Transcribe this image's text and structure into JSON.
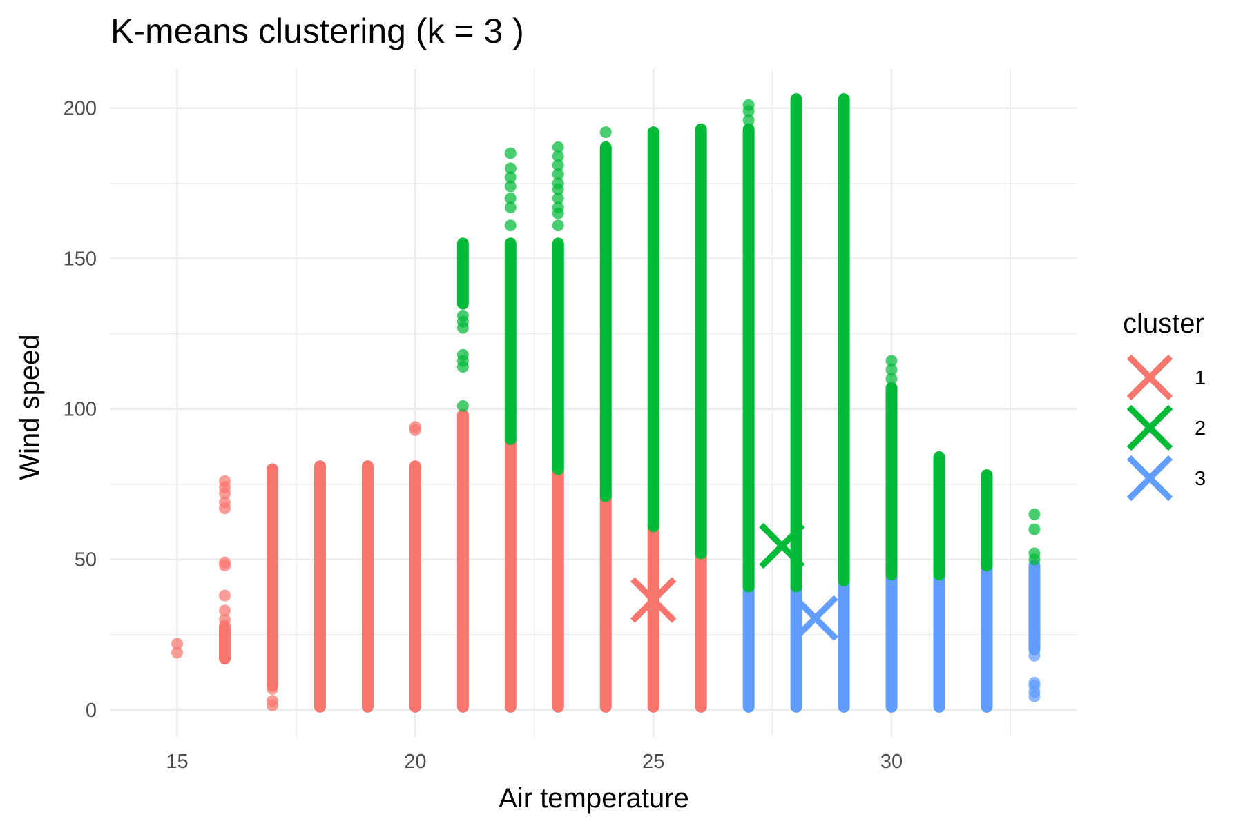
{
  "chart_data": {
    "type": "scatter",
    "title": "K-means clustering (k = 3 )",
    "xlabel": "Air temperature",
    "ylabel": "Wind speed",
    "xlim": [
      13.6,
      33.9
    ],
    "ylim": [
      -9,
      213
    ],
    "x_ticks": [
      15,
      20,
      25,
      30
    ],
    "x_tick_labels": [
      "15",
      "20",
      "25",
      "30"
    ],
    "y_ticks": [
      0,
      50,
      100,
      150,
      200
    ],
    "y_tick_labels": [
      "0",
      "50",
      "100",
      "150",
      "200"
    ],
    "grid": true,
    "legend": {
      "title": "cluster",
      "position": "right",
      "entries": [
        "1",
        "2",
        "3"
      ]
    },
    "colors": {
      "1": "#F8766D",
      "2": "#00BA38",
      "3": "#619CFF"
    },
    "columns": [
      {
        "x": 15,
        "segments": [],
        "points": [
          {
            "cluster": "1",
            "y": [
              19,
              22
            ]
          }
        ]
      },
      {
        "x": 16,
        "segments": [
          {
            "cluster": "1",
            "y0": 17,
            "y1": 27
          }
        ],
        "points": [
          {
            "cluster": "1",
            "y": [
              28,
              30,
              33,
              38,
              48,
              49,
              67,
              69,
              72,
              74,
              76
            ]
          }
        ]
      },
      {
        "x": 17,
        "segments": [
          {
            "cluster": "1",
            "y0": 8,
            "y1": 80
          }
        ],
        "points": [
          {
            "cluster": "1",
            "y": [
              1.5,
              3,
              7
            ]
          }
        ]
      },
      {
        "x": 18,
        "segments": [
          {
            "cluster": "1",
            "y0": 1,
            "y1": 81
          }
        ],
        "points": []
      },
      {
        "x": 19,
        "segments": [
          {
            "cluster": "1",
            "y0": 1,
            "y1": 81
          }
        ],
        "points": []
      },
      {
        "x": 20,
        "segments": [
          {
            "cluster": "1",
            "y0": 1,
            "y1": 81
          }
        ],
        "points": [
          {
            "cluster": "1",
            "y": [
              93,
              94
            ]
          }
        ]
      },
      {
        "x": 21,
        "segments": [
          {
            "cluster": "1",
            "y0": 1,
            "y1": 98
          },
          {
            "cluster": "2",
            "y0": 135,
            "y1": 155
          }
        ],
        "points": [
          {
            "cluster": "2",
            "y": [
              101,
              114,
              116,
              118,
              127,
              129,
              131
            ]
          }
        ]
      },
      {
        "x": 22,
        "segments": [
          {
            "cluster": "1",
            "y0": 1,
            "y1": 90
          },
          {
            "cluster": "2",
            "y0": 90,
            "y1": 155
          }
        ],
        "points": [
          {
            "cluster": "2",
            "y": [
              161,
              167,
              170,
              174,
              177,
              180,
              185
            ]
          }
        ]
      },
      {
        "x": 23,
        "segments": [
          {
            "cluster": "1",
            "y0": 1,
            "y1": 80
          },
          {
            "cluster": "2",
            "y0": 80,
            "y1": 155
          }
        ],
        "points": [
          {
            "cluster": "2",
            "y": [
              161,
              165,
              167,
              170,
              173,
              175,
              178,
              181,
              184,
              187
            ]
          }
        ]
      },
      {
        "x": 24,
        "segments": [
          {
            "cluster": "1",
            "y0": 1,
            "y1": 71
          },
          {
            "cluster": "2",
            "y0": 71,
            "y1": 187
          }
        ],
        "points": [
          {
            "cluster": "2",
            "y": [
              192
            ]
          }
        ]
      },
      {
        "x": 25,
        "segments": [
          {
            "cluster": "1",
            "y0": 1,
            "y1": 61
          },
          {
            "cluster": "2",
            "y0": 61,
            "y1": 192
          }
        ],
        "points": []
      },
      {
        "x": 26,
        "segments": [
          {
            "cluster": "1",
            "y0": 1,
            "y1": 52
          },
          {
            "cluster": "2",
            "y0": 52,
            "y1": 193
          }
        ],
        "points": []
      },
      {
        "x": 27,
        "segments": [
          {
            "cluster": "3",
            "y0": 1,
            "y1": 41
          },
          {
            "cluster": "2",
            "y0": 41,
            "y1": 193
          }
        ],
        "points": [
          {
            "cluster": "2",
            "y": [
              196,
              199,
              201
            ]
          }
        ]
      },
      {
        "x": 28,
        "segments": [
          {
            "cluster": "3",
            "y0": 1,
            "y1": 41
          },
          {
            "cluster": "2",
            "y0": 41,
            "y1": 203
          }
        ],
        "points": []
      },
      {
        "x": 29,
        "segments": [
          {
            "cluster": "3",
            "y0": 1,
            "y1": 43
          },
          {
            "cluster": "2",
            "y0": 43,
            "y1": 203
          }
        ],
        "points": []
      },
      {
        "x": 30,
        "segments": [
          {
            "cluster": "3",
            "y0": 1,
            "y1": 45
          },
          {
            "cluster": "2",
            "y0": 45,
            "y1": 107
          }
        ],
        "points": [
          {
            "cluster": "2",
            "y": [
              110,
              113,
              116
            ]
          }
        ]
      },
      {
        "x": 31,
        "segments": [
          {
            "cluster": "3",
            "y0": 1,
            "y1": 45
          },
          {
            "cluster": "2",
            "y0": 45,
            "y1": 84
          }
        ],
        "points": []
      },
      {
        "x": 32,
        "segments": [
          {
            "cluster": "3",
            "y0": 1,
            "y1": 48
          },
          {
            "cluster": "2",
            "y0": 48,
            "y1": 78
          }
        ],
        "points": []
      },
      {
        "x": 33,
        "segments": [
          {
            "cluster": "3",
            "y0": 20,
            "y1": 48
          }
        ],
        "points": [
          {
            "cluster": "3",
            "y": [
              4.5,
              6,
              8,
              9,
              18
            ]
          },
          {
            "cluster": "2",
            "y": [
              50,
              52,
              60,
              65
            ]
          }
        ]
      }
    ],
    "centroids": [
      {
        "cluster": "1",
        "x": 25.0,
        "y": 36.5
      },
      {
        "cluster": "2",
        "x": 27.7,
        "y": 54.5
      },
      {
        "cluster": "3",
        "x": 28.4,
        "y": 30.5
      }
    ]
  }
}
